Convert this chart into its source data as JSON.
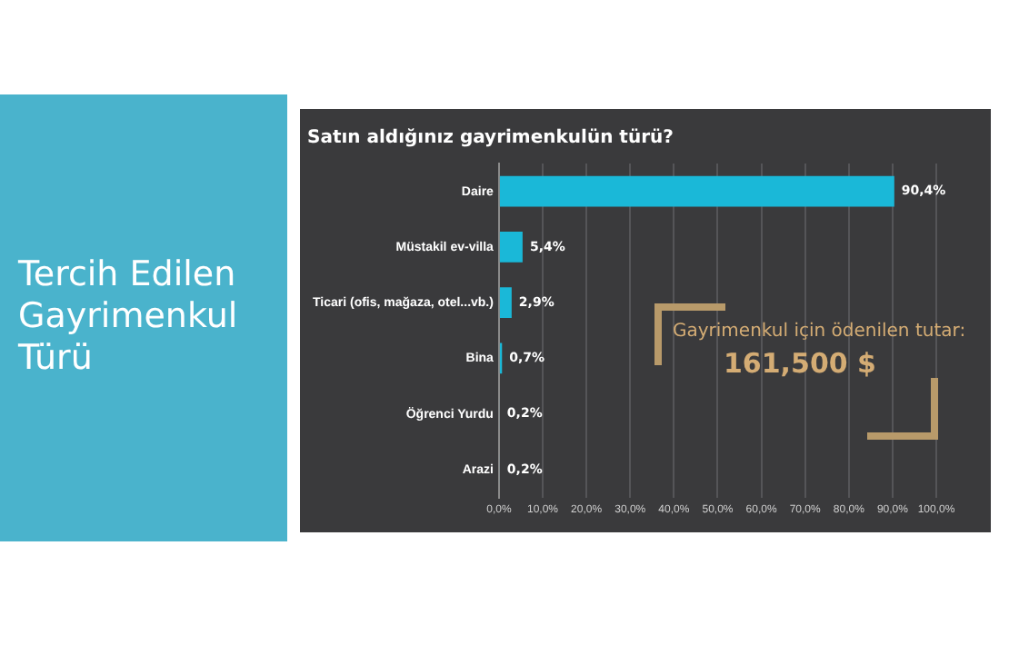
{
  "chart_data": {
    "type": "bar",
    "orientation": "horizontal",
    "title": "Tercih Edilen Gayrimenkul Türü",
    "subtitle": "Satın aldığınız gayrimenkulün türü?",
    "categories": [
      "Daire",
      "Müstakil ev-villa",
      "Ticari (ofis, mağaza, otel...vb.)",
      "Bina",
      "Öğrenci Yurdu",
      "Arazi"
    ],
    "values": [
      90.4,
      5.4,
      2.9,
      0.7,
      0.2,
      0.2
    ],
    "value_labels": [
      "90,4%",
      "5,4%",
      "2,9%",
      "0,7%",
      "0,2%",
      "0,2%"
    ],
    "color": "#1ab8d8",
    "xlim": [
      0,
      100
    ],
    "xticks": [
      {
        "value": 0,
        "label": "0,0%"
      },
      {
        "value": 10,
        "label": "10,0%"
      },
      {
        "value": 20,
        "label": "20,0%"
      },
      {
        "value": 30,
        "label": "30,0%"
      },
      {
        "value": 40,
        "label": "40,0%"
      },
      {
        "value": 50,
        "label": "50,0%"
      },
      {
        "value": 60,
        "label": "60,0%"
      },
      {
        "value": 70,
        "label": "70,0%"
      },
      {
        "value": 80,
        "label": "80,0%"
      },
      {
        "value": 90,
        "label": "90,0%"
      },
      {
        "value": 100,
        "label": "100,0%"
      }
    ],
    "grid": "x",
    "annotations": [
      "Gayrimenkul için ödenilen tutar:",
      "161,500 $"
    ]
  }
}
